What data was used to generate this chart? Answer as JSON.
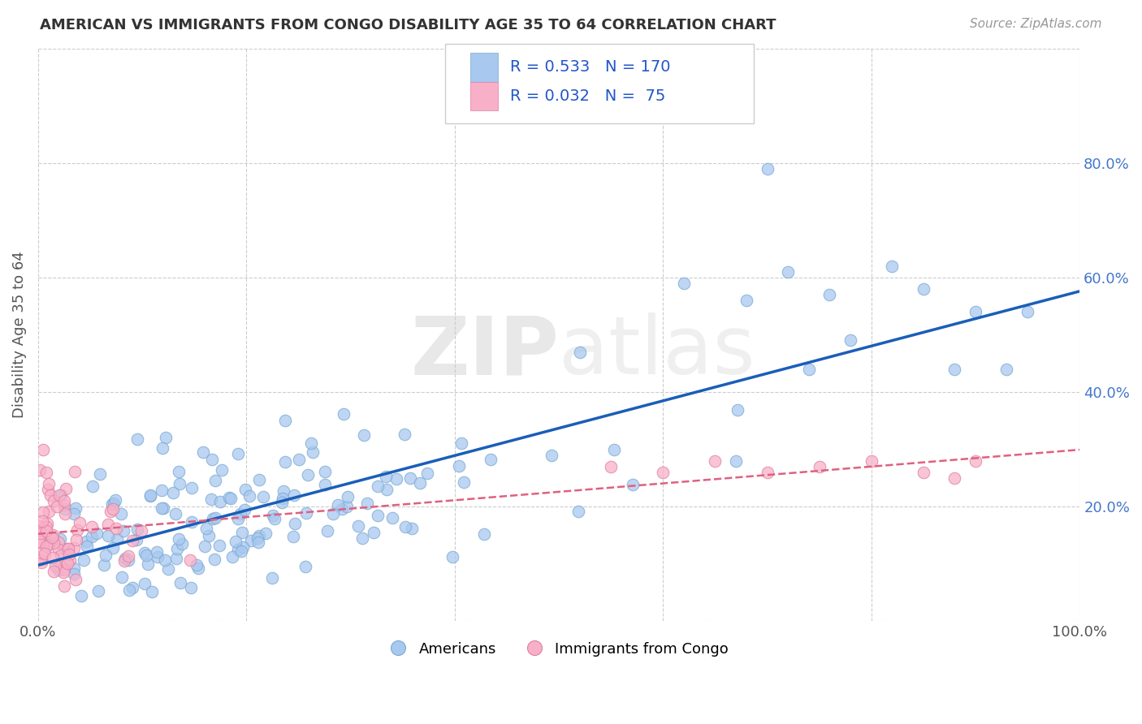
{
  "title": "AMERICAN VS IMMIGRANTS FROM CONGO DISABILITY AGE 35 TO 64 CORRELATION CHART",
  "source": "Source: ZipAtlas.com",
  "ylabel": "Disability Age 35 to 64",
  "r_american": 0.533,
  "n_american": 170,
  "r_congo": 0.032,
  "n_congo": 75,
  "american_color": "#a8c8f0",
  "american_edge_color": "#7aaad0",
  "congo_color": "#f8b0c8",
  "congo_edge_color": "#e080a0",
  "american_line_color": "#1a5eb8",
  "congo_line_color": "#e06080",
  "background_color": "#ffffff",
  "grid_color": "#cccccc",
  "title_color": "#333333",
  "legend_value_color": "#2255cc",
  "legend_label_color": "#333333",
  "seed": 42,
  "xlim": [
    0,
    1.0
  ],
  "ylim": [
    0,
    1.0
  ]
}
